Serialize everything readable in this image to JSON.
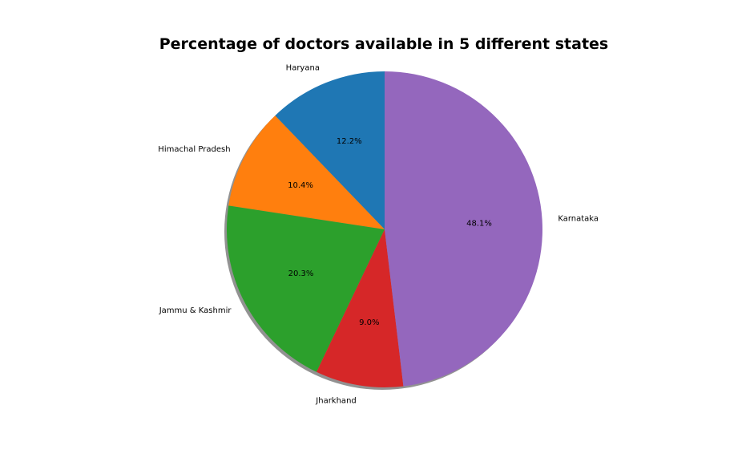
{
  "chart_data": {
    "type": "pie",
    "title": "Percentage of doctors available in 5 different states",
    "categories": [
      "Haryana",
      "Himachal Pradesh",
      "Jammu & Kashmir",
      "Jharkhand",
      "Karnataka"
    ],
    "values": [
      12.2,
      10.4,
      20.3,
      9.0,
      48.1
    ],
    "value_labels": [
      "12.2%",
      "10.4%",
      "20.3%",
      "9.0%",
      "48.1%"
    ],
    "colors": [
      "#1f77b4",
      "#ff7f0e",
      "#2ca02c",
      "#d62728",
      "#9467bd"
    ],
    "start_angle_deg": 90,
    "direction": "counterclockwise",
    "shadow": true,
    "legend": "none"
  }
}
